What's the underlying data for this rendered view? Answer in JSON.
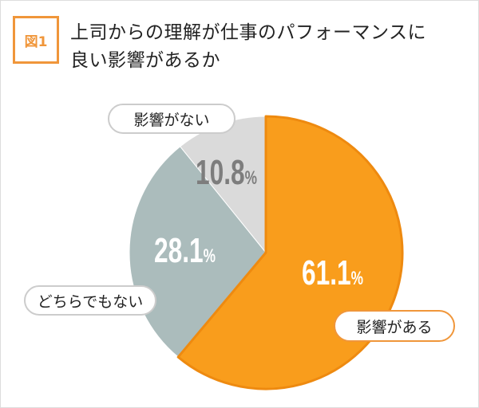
{
  "figure_label": "図1",
  "title_line1": "上司からの理解が仕事のパフォーマンスに",
  "title_line2": "良い影響があるか",
  "chart_data": {
    "type": "pie",
    "title": "上司からの理解が仕事のパフォーマンスに良い影響があるか",
    "categories": [
      "影響がある",
      "どちらでもない",
      "影響がない"
    ],
    "values": [
      61.1,
      28.1,
      10.8
    ],
    "value_labels": [
      "61.1",
      "28.1",
      "10.8"
    ],
    "unit": "%",
    "colors": [
      "#f99d1c",
      "#abbcbc",
      "#dadada"
    ],
    "stroke_colors": [
      "#ee8a10",
      "#ffffff",
      "#ffffff"
    ],
    "start": "12 o'clock, clockwise"
  }
}
